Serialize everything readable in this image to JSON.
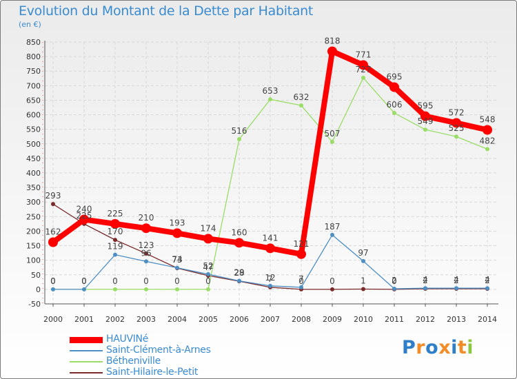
{
  "chart_data": {
    "type": "line",
    "title": "Evolution du Montant de la Dette par Habitant",
    "unit_label": "(en €)",
    "x": [
      "2000",
      "2001",
      "2002",
      "2003",
      "2004",
      "2005",
      "2006",
      "2007",
      "2008",
      "2009",
      "2010",
      "2011",
      "2012",
      "2013",
      "2014"
    ],
    "ylim": [
      -50,
      850
    ],
    "yticks": [
      -50,
      0,
      50,
      100,
      150,
      200,
      250,
      300,
      350,
      400,
      450,
      500,
      550,
      600,
      650,
      700,
      750,
      800,
      850
    ],
    "grid": true,
    "legend_position": "bottom-left",
    "series": [
      {
        "name": "HAUVINé",
        "color": "#ff0000",
        "values": [
          162,
          240,
          225,
          210,
          193,
          174,
          160,
          141,
          121,
          818,
          771,
          695,
          595,
          572,
          548
        ],
        "labels": [
          "162",
          "240",
          "225",
          "210",
          "193",
          "174",
          "160",
          "141",
          "121",
          "818",
          "771",
          "695",
          "595",
          "572",
          "548"
        ]
      },
      {
        "name": "Saint-Clément-à-Arnes",
        "color": "#4d8ec4",
        "values": [
          0,
          0,
          119,
          96,
          74,
          52,
          29,
          12,
          7,
          187,
          97,
          2,
          4,
          4,
          4
        ],
        "labels": [
          "0",
          "0",
          "119",
          "96",
          "74",
          "52",
          "29",
          "12",
          "7",
          "187",
          "97",
          "2",
          "4",
          "4",
          "4"
        ]
      },
      {
        "name": "Bétheniville",
        "color": "#99dd66",
        "values": [
          0,
          0,
          0,
          0,
          0,
          0,
          516,
          653,
          632,
          507,
          727,
          606,
          549,
          525,
          482
        ],
        "labels": [
          "0",
          "0",
          "0",
          "0",
          "0",
          "0",
          "516",
          "653",
          "632",
          "507",
          "727",
          "606",
          "549",
          "525",
          "482"
        ]
      },
      {
        "name": "Saint-Hilaire-le-Petit",
        "color": "#7a2a2a",
        "values": [
          293,
          225,
          170,
          123,
          73,
          47,
          28,
          7,
          0,
          0,
          1,
          0,
          2,
          2,
          2
        ],
        "labels": [
          "293",
          "225",
          "170",
          "123",
          "73",
          "47",
          "28",
          "7",
          "0",
          "0",
          "1",
          "0",
          "2",
          "2",
          "2"
        ]
      }
    ]
  },
  "logo": {
    "text": "Proxiti",
    "colors": [
      "#2f7fc8",
      "#f28c28",
      "#2f7fc8",
      "#f28c28",
      "#2f7fc8",
      "#f28c28",
      "#8cc63f"
    ]
  }
}
